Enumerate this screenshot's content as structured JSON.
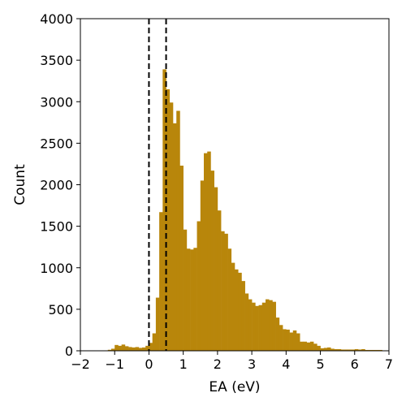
{
  "chart_data": {
    "type": "histogram",
    "xlabel": "EA (eV)",
    "ylabel": "Count",
    "xlim": [
      -2,
      7
    ],
    "ylim": [
      0,
      4000
    ],
    "x_ticks": [
      -2,
      -1,
      0,
      1,
      2,
      3,
      4,
      5,
      6,
      7
    ],
    "x_tick_labels": [
      "−2",
      "−1",
      "0",
      "1",
      "2",
      "3",
      "4",
      "5",
      "6",
      "7"
    ],
    "y_ticks": [
      0,
      500,
      1000,
      1500,
      2000,
      2500,
      3000,
      3500,
      4000
    ],
    "y_tick_labels": [
      "0",
      "500",
      "1000",
      "1500",
      "2000",
      "2500",
      "3000",
      "3500",
      "4000"
    ],
    "bar_color": "#b8860b",
    "bin_width": 0.1,
    "bins": [
      [
        -1.3,
        5
      ],
      [
        -1.2,
        12
      ],
      [
        -1.1,
        25
      ],
      [
        -1.0,
        70
      ],
      [
        -0.9,
        60
      ],
      [
        -0.8,
        75
      ],
      [
        -0.7,
        55
      ],
      [
        -0.6,
        45
      ],
      [
        -0.5,
        40
      ],
      [
        -0.4,
        45
      ],
      [
        -0.3,
        35
      ],
      [
        -0.2,
        40
      ],
      [
        -0.1,
        60
      ],
      [
        0.0,
        95
      ],
      [
        0.1,
        210
      ],
      [
        0.2,
        640
      ],
      [
        0.3,
        1670
      ],
      [
        0.4,
        3390
      ],
      [
        0.5,
        3150
      ],
      [
        0.6,
        2990
      ],
      [
        0.7,
        2740
      ],
      [
        0.8,
        2890
      ],
      [
        0.9,
        2230
      ],
      [
        1.0,
        1460
      ],
      [
        1.1,
        1230
      ],
      [
        1.2,
        1220
      ],
      [
        1.3,
        1240
      ],
      [
        1.4,
        1560
      ],
      [
        1.5,
        2050
      ],
      [
        1.6,
        2380
      ],
      [
        1.7,
        2400
      ],
      [
        1.8,
        2170
      ],
      [
        1.9,
        1970
      ],
      [
        2.0,
        1690
      ],
      [
        2.1,
        1440
      ],
      [
        2.2,
        1410
      ],
      [
        2.3,
        1230
      ],
      [
        2.4,
        1060
      ],
      [
        2.5,
        980
      ],
      [
        2.6,
        940
      ],
      [
        2.7,
        840
      ],
      [
        2.8,
        690
      ],
      [
        2.9,
        620
      ],
      [
        3.0,
        580
      ],
      [
        3.1,
        540
      ],
      [
        3.2,
        550
      ],
      [
        3.3,
        580
      ],
      [
        3.4,
        620
      ],
      [
        3.5,
        610
      ],
      [
        3.6,
        590
      ],
      [
        3.7,
        400
      ],
      [
        3.8,
        310
      ],
      [
        3.9,
        260
      ],
      [
        4.0,
        255
      ],
      [
        4.1,
        220
      ],
      [
        4.2,
        245
      ],
      [
        4.3,
        210
      ],
      [
        4.4,
        110
      ],
      [
        4.5,
        110
      ],
      [
        4.6,
        100
      ],
      [
        4.7,
        110
      ],
      [
        4.8,
        85
      ],
      [
        4.9,
        60
      ],
      [
        5.0,
        30
      ],
      [
        5.1,
        35
      ],
      [
        5.2,
        40
      ],
      [
        5.3,
        25
      ],
      [
        5.4,
        20
      ],
      [
        5.5,
        20
      ],
      [
        5.6,
        15
      ],
      [
        5.7,
        15
      ],
      [
        5.8,
        15
      ],
      [
        5.9,
        15
      ],
      [
        6.0,
        20
      ],
      [
        6.1,
        15
      ],
      [
        6.2,
        20
      ],
      [
        6.3,
        10
      ],
      [
        6.4,
        10
      ],
      [
        6.5,
        10
      ],
      [
        6.6,
        10
      ],
      [
        6.7,
        10
      ],
      [
        6.8,
        5
      ],
      [
        6.9,
        5
      ]
    ],
    "reference_lines": [
      {
        "x": 0.0,
        "style": "dashed",
        "color": "#000000"
      },
      {
        "x": 0.5,
        "style": "dashed",
        "color": "#000000"
      }
    ],
    "grid": false,
    "legend": "none"
  }
}
